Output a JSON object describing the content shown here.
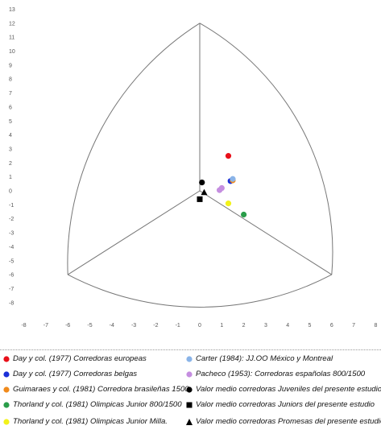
{
  "chart_data": {
    "type": "scatter",
    "title": "",
    "xlabel": "",
    "ylabel": "",
    "xlim": [
      -8,
      8
    ],
    "ylim": [
      -8,
      13
    ],
    "x_ticks": [
      "-8",
      "-7",
      "-6",
      "-5",
      "-4",
      "-3",
      "-2",
      "-1",
      "0",
      "1",
      "2",
      "3",
      "4",
      "5",
      "6",
      "7",
      "8"
    ],
    "y_ticks": [
      "13",
      "12",
      "11",
      "10",
      "9",
      "8",
      "7",
      "6",
      "5",
      "4",
      "3",
      "2",
      "1",
      "0",
      "-1",
      "-2",
      "-3",
      "-4",
      "-5",
      "-6",
      "-7",
      "-8"
    ],
    "grid": false,
    "legend_position": "bottom",
    "series": [
      {
        "name": "Day y col. (1977) Corredoras europeas",
        "color": "#e8101a",
        "marker": "circle",
        "x": 1.3,
        "y": 2.5
      },
      {
        "name": "Day y col. (1977) Corredoras belgas",
        "color": "#1a2fd8",
        "marker": "circle",
        "x": 1.4,
        "y": 0.7
      },
      {
        "name": "Guimaraes y col. (1981) Corredora brasileñas 1500",
        "color": "#f08a1c",
        "marker": "circle",
        "x": 1.5,
        "y": 0.75
      },
      {
        "name": "Thorland y col. (1981) Olimpicas Junior 800/1500",
        "color": "#2a9d4a",
        "marker": "circle",
        "x": 2.0,
        "y": -1.7
      },
      {
        "name": "Thorland y col. (1981) Olimpicas Junior Milla.",
        "color": "#f2f21a",
        "marker": "circle",
        "x": 1.3,
        "y": -0.9
      },
      {
        "name": "Carter (1984): JJ.OO México y Montreal",
        "color": "#8ab4e8",
        "marker": "circle",
        "x": 1.5,
        "y": 0.85
      },
      {
        "name": "Pacheco (1953): Corredoras españolas 800/1500",
        "color": "#c58ee0",
        "marker": "circle",
        "x": 0.9,
        "y": 0.05
      },
      {
        "name": "Pacheco (1953): Corredoras españolas 800/1500",
        "color": "#c58ee0",
        "marker": "circle",
        "x": 1.0,
        "y": 0.2
      },
      {
        "name": "Valor medio corredoras Juveniles del presente estudio",
        "color": "#000000",
        "marker": "circle",
        "x": 0.1,
        "y": 0.6
      },
      {
        "name": "Valor medio corredoras Juniors del presente estudio",
        "color": "#000000",
        "marker": "square",
        "x": 0.0,
        "y": -0.6
      },
      {
        "name": "Valor medio corredoras Promesas del presente estudio",
        "color": "#000000",
        "marker": "triangle",
        "x": 0.2,
        "y": -0.1
      }
    ],
    "legend": [
      {
        "label": "Day y col. (1977) Corredoras europeas",
        "color": "#e8101a",
        "marker": "circle"
      },
      {
        "label": "Day y col. (1977) Corredoras belgas",
        "color": "#1a2fd8",
        "marker": "circle"
      },
      {
        "label": "Guimaraes y col. (1981) Corredora brasileñas 1500",
        "color": "#f08a1c",
        "marker": "circle"
      },
      {
        "label": "Thorland y col. (1981) Olimpicas Junior 800/1500",
        "color": "#2a9d4a",
        "marker": "circle"
      },
      {
        "label": "Thorland y col. (1981) Olimpicas Junior Milla.",
        "color": "#f2f21a",
        "marker": "circle"
      },
      {
        "label": "Carter (1984): JJ.OO México y Montreal",
        "color": "#8ab4e8",
        "marker": "circle"
      },
      {
        "label": "Pacheco (1953): Corredoras españolas 800/1500",
        "color": "#c58ee0",
        "marker": "circle"
      },
      {
        "label": "Valor medio corredoras Juveniles del presente estudio",
        "color": "#000000",
        "marker": "circle"
      },
      {
        "label": "Valor medio corredoras Juniors del presente estudio",
        "color": "#000000",
        "marker": "square"
      },
      {
        "label": "Valor medio corredoras Promesas del presente estudio",
        "color": "#000000",
        "marker": "triangle"
      }
    ]
  }
}
